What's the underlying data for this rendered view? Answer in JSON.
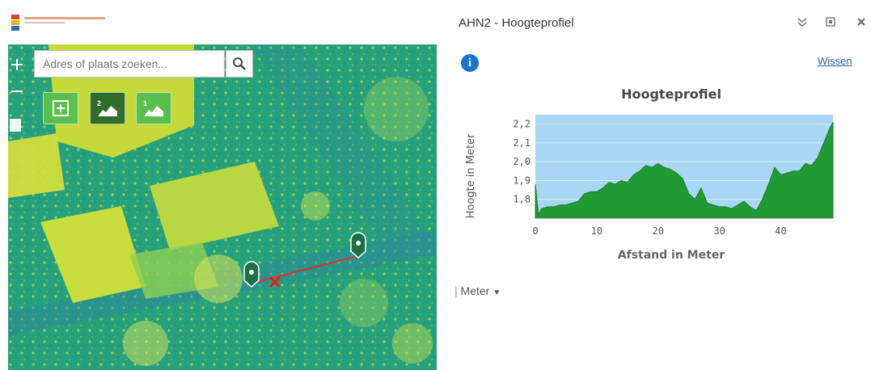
{
  "panel": {
    "title": "AHN2 - Hoogteprofiel",
    "wissen_label": "Wissen",
    "unit_label": "Meter"
  },
  "search": {
    "placeholder": "Adres of plaats zoeken..."
  },
  "toolbar": {
    "btn2_label": "2",
    "btn3_label": "1"
  },
  "chart_data": {
    "type": "area",
    "title": "Hoogteprofiel",
    "xlabel": "Afstand in Meter",
    "ylabel": "Hoogte in Meter",
    "xlim": [
      0,
      48.5
    ],
    "ylim": [
      1.7,
      2.25
    ],
    "x_ticks": [
      0,
      10,
      20,
      30,
      40
    ],
    "x_tick_labels": [
      "0",
      "10",
      "20",
      "30",
      "40"
    ],
    "y_ticks": [
      1.8,
      1.9,
      2.0,
      2.1,
      2.2
    ],
    "y_tick_labels": [
      "1,8",
      "1,9",
      "2,0",
      "2,1",
      "2,2"
    ],
    "fill_color": "#219a35",
    "plot_bg": "#a9d6f2",
    "x": [
      0,
      0.5,
      1,
      2,
      3,
      4,
      5,
      6,
      7,
      8,
      9,
      10,
      11,
      12,
      13,
      14,
      15,
      16,
      17,
      18,
      19,
      20,
      21,
      22,
      23,
      24,
      25,
      26,
      27,
      28,
      29,
      30,
      31,
      32,
      33,
      34,
      35,
      36,
      37,
      38,
      39,
      40,
      41,
      42,
      43,
      44,
      45,
      46,
      47,
      48,
      48.5
    ],
    "y": [
      1.88,
      1.72,
      1.75,
      1.76,
      1.76,
      1.77,
      1.77,
      1.78,
      1.79,
      1.83,
      1.84,
      1.84,
      1.86,
      1.89,
      1.88,
      1.9,
      1.89,
      1.93,
      1.95,
      1.98,
      1.97,
      1.99,
      1.97,
      1.96,
      1.94,
      1.91,
      1.83,
      1.8,
      1.86,
      1.78,
      1.77,
      1.76,
      1.76,
      1.75,
      1.77,
      1.79,
      1.76,
      1.74,
      1.8,
      1.88,
      1.97,
      1.93,
      1.94,
      1.95,
      1.95,
      1.99,
      1.98,
      2.02,
      2.1,
      2.18,
      2.21
    ]
  }
}
